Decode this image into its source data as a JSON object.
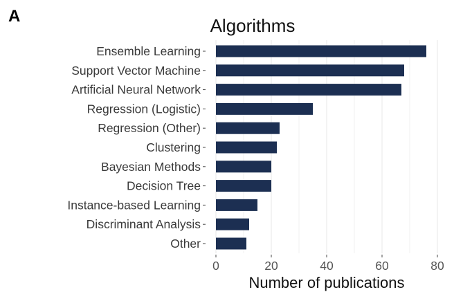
{
  "panel_label": "A",
  "chart_data": {
    "type": "bar",
    "orientation": "horizontal",
    "title": "Algorithms",
    "xlabel": "Number of publications",
    "ylabel": "",
    "categories": [
      "Ensemble Learning",
      "Support Vector Machine",
      "Artificial Neural Network",
      "Regression (Logistic)",
      "Regression (Other)",
      "Clustering",
      "Bayesian Methods",
      "Decision Tree",
      "Instance-based Learning",
      "Discriminant Analysis",
      "Other"
    ],
    "values": [
      76,
      68,
      67,
      35,
      23,
      22,
      20,
      20,
      15,
      12,
      11
    ],
    "xlim": [
      0,
      80
    ],
    "xticks": [
      0,
      20,
      40,
      60,
      80
    ],
    "grid": "vertical",
    "bar_color": "#1c2f52",
    "grid_color": "#ebebeb"
  }
}
